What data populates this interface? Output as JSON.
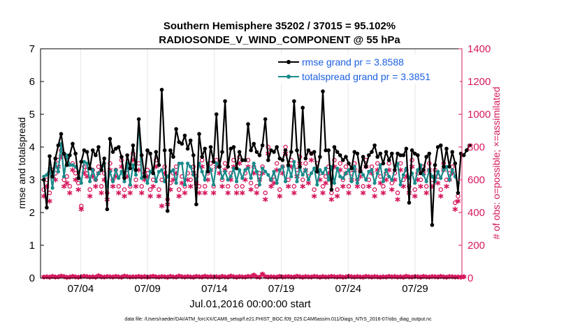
{
  "chart_data": {
    "type": "line",
    "title_line1": "Southern Hemisphere 35202 / 37015 = 95.102%",
    "title_line2": "RADIOSONDE_V_WIND_COMPONENT @ 55 hPa",
    "xlabel": "Jul.01,2016 00:00:00 start",
    "ylabel_left": "rmse and totalspread",
    "ylabel_right": "# of obs: o=possible; ×=assimilated",
    "footnote": "data file: /Users/raeder/DAI/ATM_forcXX/CAM6_setup/f.e21.FHIST_BGC.f09_025.CAM6assim.011/Diags_NTrS_2016-07/obs_diag_output.nc",
    "xlim": [
      1,
      32.5
    ],
    "ylim_left": [
      0,
      7
    ],
    "ylim_right": [
      0,
      1400
    ],
    "x_ticks": [
      {
        "value": 4,
        "label": "07/04"
      },
      {
        "value": 9,
        "label": "07/09"
      },
      {
        "value": 14,
        "label": "07/14"
      },
      {
        "value": 19,
        "label": "07/19"
      },
      {
        "value": 24,
        "label": "07/24"
      },
      {
        "value": 29,
        "label": "07/29"
      }
    ],
    "y_ticks_left": [
      "0",
      "1",
      "2",
      "3",
      "4",
      "5",
      "6",
      "7"
    ],
    "y_ticks_right": [
      "0",
      "200",
      "400",
      "600",
      "800",
      "1000",
      "1200",
      "1400"
    ],
    "colors": {
      "rmse": "#000000",
      "spread": "#1a8a8a",
      "obs": "#d6185e",
      "legend_text": "#1a5fe0",
      "axis": "#000000",
      "grid": "#e6e6e6"
    },
    "legend": {
      "placement": "top-right",
      "entries": [
        "rmse grand pr = 3.8588",
        "totalspread grand pr = 3.3851"
      ]
    },
    "series": [
      {
        "name": "rmse",
        "values": [
          3.0,
          2.15,
          3.72,
          3.1,
          3.65,
          4.05,
          4.4,
          3.8,
          3.45,
          3.75,
          4.1,
          3.8,
          3.05,
          3.55,
          3.9,
          3.85,
          3.35,
          3.9,
          3.75,
          4.0,
          3.3,
          3.65,
          2.1,
          4.25,
          3.85,
          3.95,
          4.0,
          3.7,
          3.05,
          3.75,
          3.35,
          4.05,
          3.3,
          4.85,
          3.75,
          3.1,
          3.9,
          3.8,
          3.2,
          3.85,
          3.45,
          5.75,
          3.9,
          2.05,
          3.9,
          3.7,
          4.55,
          4.15,
          4.1,
          4.35,
          3.95,
          4.2,
          3.75,
          2.25,
          4.4,
          3.7,
          3.95,
          3.25,
          4.0,
          3.55,
          5.0,
          3.4,
          3.85,
          5.4,
          3.4,
          3.95,
          4.0,
          3.35,
          3.85,
          3.6,
          3.6,
          4.7,
          3.9,
          4.1,
          3.85,
          3.75,
          4.05,
          4.85,
          3.6,
          3.9,
          3.85,
          4.0,
          3.65,
          3.6,
          3.9,
          3.45,
          3.85,
          5.4,
          3.9,
          3.4,
          5.2,
          3.65,
          3.9,
          3.8,
          3.85,
          3.25,
          3.7,
          5.7,
          3.9,
          3.9,
          2.7,
          4.0,
          3.85,
          3.75,
          3.6,
          3.7,
          3.5,
          3.35,
          3.85,
          3.8,
          3.25,
          3.7,
          3.4,
          3.75,
          3.85,
          4.05,
          3.7,
          3.8,
          3.5,
          3.85,
          3.6,
          3.8,
          3.3,
          3.8,
          3.75,
          3.75,
          3.95,
          2.3,
          3.9,
          3.8,
          3.75,
          3.2,
          3.3,
          3.7,
          3.8,
          1.62,
          3.45,
          4.0,
          4.05,
          3.4,
          3.95,
          3.4,
          3.85,
          3.5,
          2.6,
          3.8,
          3.75,
          3.9,
          4.05
        ]
      },
      {
        "name": "totalspread",
        "values": [
          3.1,
          3.15,
          3.35,
          2.75,
          3.5,
          3.25,
          4.1,
          3.1,
          3.75,
          3.45,
          3.45,
          3.4,
          3.25,
          2.9,
          3.55,
          3.5,
          2.95,
          3.3,
          3.0,
          3.2,
          3.3,
          3.5,
          2.8,
          3.25,
          2.95,
          3.3,
          3.05,
          3.25,
          2.95,
          3.5,
          2.85,
          3.45,
          3.15,
          4.85,
          3.05,
          3.15,
          2.9,
          3.25,
          3.35,
          2.95,
          3.25,
          3.3,
          2.95,
          3.1,
          3.25,
          3.3,
          2.9,
          3.5,
          3.5,
          2.85,
          3.5,
          3.4,
          3.15,
          3.0,
          3.5,
          3.25,
          3.0,
          3.5,
          3.3,
          2.85,
          3.5,
          3.45,
          3.05,
          3.25,
          3.0,
          3.1,
          3.35,
          2.95,
          3.3,
          3.05,
          3.3,
          3.35,
          3.05,
          3.5,
          3.25,
          2.85,
          3.35,
          3.25,
          3.15,
          3.0,
          3.25,
          2.9,
          3.3,
          3.4,
          2.95,
          3.4,
          3.1,
          3.55,
          2.95,
          3.35,
          3.15,
          3.3,
          3.0,
          3.2,
          3.35,
          2.85,
          3.3,
          3.2,
          3.35,
          3.0,
          3.4,
          2.9,
          3.35,
          3.1,
          3.05,
          3.2,
          3.3,
          2.95,
          3.4,
          2.9,
          3.35,
          3.15,
          3.0,
          3.25,
          3.3,
          2.9,
          3.2,
          3.45,
          2.95,
          3.3,
          3.1,
          3.0,
          3.3,
          3.5,
          2.85,
          3.15,
          3.35,
          3.05,
          3.2,
          2.9,
          3.3,
          3.45,
          3.15,
          2.95,
          3.3,
          3.1,
          2.95,
          3.25,
          3.05,
          3.3,
          3.4,
          3.0,
          3.3,
          3.1,
          2.9
        ]
      },
      {
        "name": "obs_possible",
        "values": [
          540,
          600,
          520,
          660,
          640,
          720,
          780,
          600,
          620,
          560,
          700,
          640,
          580,
          440,
          680,
          660,
          540,
          660,
          600,
          680,
          560,
          640,
          520,
          700,
          600,
          660,
          560,
          720,
          540,
          660,
          560,
          760,
          600,
          700,
          560,
          640,
          660,
          540,
          600,
          720,
          540,
          600,
          680,
          480,
          580,
          640,
          680,
          540,
          620,
          560,
          640,
          600,
          680,
          620,
          560,
          720,
          560,
          640,
          700,
          560,
          720,
          680,
          600,
          700,
          560,
          640,
          720,
          560,
          740,
          560,
          640,
          720,
          580,
          680,
          560,
          640,
          680,
          520,
          800,
          600,
          620,
          700,
          540,
          680,
          800,
          600,
          720,
          560,
          660,
          740,
          600,
          700,
          620,
          760,
          540,
          700,
          640,
          560,
          620,
          680,
          520,
          720,
          540,
          700,
          600,
          680,
          560,
          640,
          700,
          600,
          660,
          560,
          720,
          600,
          680,
          540,
          700,
          620,
          560,
          640,
          700,
          580,
          640,
          520,
          700,
          600,
          660,
          560,
          720,
          540,
          640,
          600,
          680,
          560,
          700,
          600,
          660,
          620,
          540,
          700,
          600,
          640,
          680,
          460,
          500
        ]
      },
      {
        "name": "obs_assimilated",
        "values": [
          500,
          560,
          470,
          620,
          600,
          680,
          740,
          560,
          580,
          520,
          660,
          600,
          540,
          420,
          640,
          620,
          500,
          620,
          560,
          640,
          520,
          600,
          480,
          660,
          560,
          620,
          520,
          680,
          500,
          620,
          520,
          720,
          560,
          660,
          520,
          600,
          620,
          500,
          560,
          680,
          500,
          440,
          640,
          450,
          540,
          600,
          640,
          500,
          580,
          520,
          600,
          560,
          640,
          580,
          520,
          680,
          520,
          600,
          660,
          520,
          680,
          640,
          560,
          660,
          520,
          600,
          680,
          520,
          700,
          520,
          600,
          680,
          540,
          640,
          520,
          600,
          640,
          480,
          760,
          560,
          580,
          660,
          500,
          640,
          760,
          560,
          680,
          520,
          620,
          700,
          560,
          660,
          580,
          720,
          500,
          660,
          600,
          520,
          580,
          640,
          480,
          680,
          500,
          660,
          560,
          640,
          520,
          600,
          660,
          560,
          620,
          520,
          680,
          560,
          640,
          500,
          660,
          580,
          520,
          600,
          660,
          540,
          600,
          480,
          660,
          560,
          620,
          520,
          680,
          500,
          600,
          560,
          640,
          520,
          660,
          560,
          620,
          580,
          500,
          660,
          560,
          600,
          640,
          420,
          470
        ]
      },
      {
        "name": "obs_low_possible",
        "values": [
          6,
          8,
          5,
          10,
          6,
          7,
          12,
          9,
          4,
          6,
          10,
          7,
          5,
          8,
          11,
          9,
          6,
          8,
          5,
          14,
          7,
          6,
          9,
          8,
          6,
          10,
          7,
          5,
          12,
          9,
          6,
          8,
          7,
          10,
          6,
          9,
          5,
          8,
          11,
          7,
          6,
          9,
          8,
          5,
          10,
          7,
          6,
          12,
          8,
          6,
          9,
          7,
          5,
          10,
          8,
          6,
          11,
          7,
          9,
          6,
          8,
          5,
          10,
          7,
          6,
          12,
          8,
          5,
          9,
          7,
          6,
          10,
          8,
          18,
          7,
          5,
          24,
          9,
          6,
          8,
          7,
          5,
          10,
          6,
          8,
          9,
          7,
          6,
          11,
          8,
          5,
          9,
          7,
          6,
          10,
          8,
          5,
          9,
          6,
          7,
          10,
          8,
          6,
          9,
          5,
          7,
          11,
          8,
          6,
          9,
          7,
          5,
          10,
          8,
          6,
          9,
          7,
          5,
          8,
          6,
          10,
          7,
          9,
          6,
          8,
          5,
          11,
          7,
          6,
          9,
          8,
          5,
          10,
          7,
          6,
          9,
          8,
          6,
          10,
          7,
          5,
          9,
          8,
          6,
          7,
          5,
          8
        ]
      }
    ]
  }
}
